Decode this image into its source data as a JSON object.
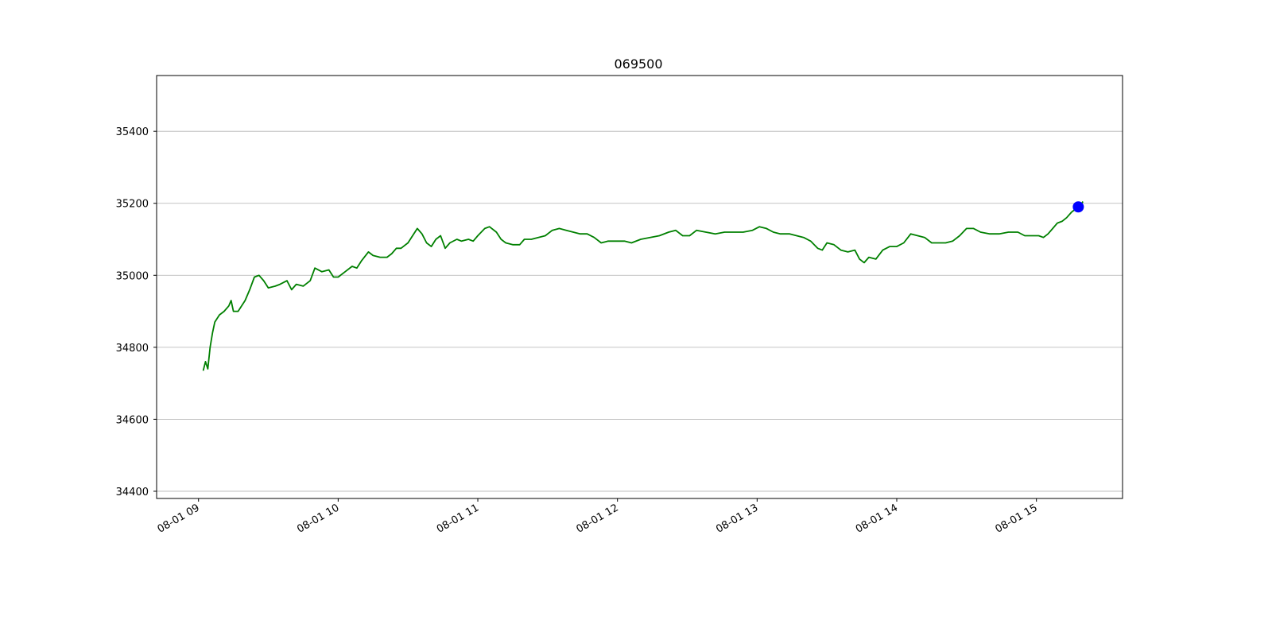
{
  "chart_data": {
    "type": "line",
    "title": "069500",
    "xlabel": "",
    "ylabel": "",
    "x_ticks": [
      "08-01 09",
      "08-01 10",
      "08-01 11",
      "08-01 12",
      "08-01 13",
      "08-01 14",
      "08-01 15"
    ],
    "y_ticks": [
      34400,
      34600,
      34800,
      35000,
      35200,
      35400
    ],
    "xlim": [
      "08-01 08:42",
      "08-01 15:37"
    ],
    "ylim": [
      34380,
      35555
    ],
    "grid": "y-axis only",
    "series": [
      {
        "color": "#008000",
        "points": [
          [
            "09:02",
            34735
          ],
          [
            "09:03",
            34760
          ],
          [
            "09:04",
            34740
          ],
          [
            "09:05",
            34800
          ],
          [
            "09:06",
            34840
          ],
          [
            "09:07",
            34870
          ],
          [
            "09:09",
            34890
          ],
          [
            "09:11",
            34900
          ],
          [
            "09:13",
            34915
          ],
          [
            "09:14",
            34930
          ],
          [
            "09:15",
            34900
          ],
          [
            "09:17",
            34900
          ],
          [
            "09:20",
            34930
          ],
          [
            "09:22",
            34960
          ],
          [
            "09:24",
            34995
          ],
          [
            "09:26",
            35000
          ],
          [
            "09:28",
            34985
          ],
          [
            "09:30",
            34965
          ],
          [
            "09:33",
            34970
          ],
          [
            "09:35",
            34975
          ],
          [
            "09:38",
            34985
          ],
          [
            "09:40",
            34960
          ],
          [
            "09:42",
            34975
          ],
          [
            "09:45",
            34970
          ],
          [
            "09:48",
            34985
          ],
          [
            "09:50",
            35020
          ],
          [
            "09:53",
            35010
          ],
          [
            "09:56",
            35015
          ],
          [
            "09:58",
            34995
          ],
          [
            "10:00",
            34995
          ],
          [
            "10:03",
            35010
          ],
          [
            "10:06",
            35025
          ],
          [
            "10:08",
            35020
          ],
          [
            "10:10",
            35040
          ],
          [
            "10:13",
            35065
          ],
          [
            "10:15",
            35055
          ],
          [
            "10:18",
            35050
          ],
          [
            "10:21",
            35050
          ],
          [
            "10:23",
            35060
          ],
          [
            "10:25",
            35075
          ],
          [
            "10:27",
            35075
          ],
          [
            "10:30",
            35090
          ],
          [
            "10:32",
            35110
          ],
          [
            "10:34",
            35130
          ],
          [
            "10:36",
            35115
          ],
          [
            "10:38",
            35090
          ],
          [
            "10:40",
            35080
          ],
          [
            "10:42",
            35100
          ],
          [
            "10:44",
            35110
          ],
          [
            "10:46",
            35075
          ],
          [
            "10:48",
            35090
          ],
          [
            "10:51",
            35100
          ],
          [
            "10:53",
            35095
          ],
          [
            "10:56",
            35100
          ],
          [
            "10:58",
            35095
          ],
          [
            "11:00",
            35110
          ],
          [
            "11:03",
            35130
          ],
          [
            "11:05",
            35135
          ],
          [
            "11:08",
            35120
          ],
          [
            "11:10",
            35100
          ],
          [
            "11:12",
            35090
          ],
          [
            "11:15",
            35085
          ],
          [
            "11:18",
            35085
          ],
          [
            "11:20",
            35100
          ],
          [
            "11:23",
            35100
          ],
          [
            "11:26",
            35105
          ],
          [
            "11:29",
            35110
          ],
          [
            "11:32",
            35125
          ],
          [
            "11:35",
            35130
          ],
          [
            "11:38",
            35125
          ],
          [
            "11:41",
            35120
          ],
          [
            "11:44",
            35115
          ],
          [
            "11:47",
            35115
          ],
          [
            "11:50",
            35105
          ],
          [
            "11:53",
            35090
          ],
          [
            "11:56",
            35095
          ],
          [
            "12:00",
            35095
          ],
          [
            "12:03",
            35095
          ],
          [
            "12:06",
            35090
          ],
          [
            "12:10",
            35100
          ],
          [
            "12:14",
            35105
          ],
          [
            "12:18",
            35110
          ],
          [
            "12:22",
            35120
          ],
          [
            "12:25",
            35125
          ],
          [
            "12:28",
            35110
          ],
          [
            "12:31",
            35110
          ],
          [
            "12:34",
            35125
          ],
          [
            "12:38",
            35120
          ],
          [
            "12:42",
            35115
          ],
          [
            "12:46",
            35120
          ],
          [
            "12:50",
            35120
          ],
          [
            "12:54",
            35120
          ],
          [
            "12:58",
            35125
          ],
          [
            "13:01",
            35135
          ],
          [
            "13:04",
            35130
          ],
          [
            "13:07",
            35120
          ],
          [
            "13:10",
            35115
          ],
          [
            "13:14",
            35115
          ],
          [
            "13:17",
            35110
          ],
          [
            "13:20",
            35105
          ],
          [
            "13:23",
            35095
          ],
          [
            "13:26",
            35075
          ],
          [
            "13:28",
            35070
          ],
          [
            "13:30",
            35090
          ],
          [
            "13:33",
            35085
          ],
          [
            "13:36",
            35070
          ],
          [
            "13:39",
            35065
          ],
          [
            "13:42",
            35070
          ],
          [
            "13:44",
            35045
          ],
          [
            "13:46",
            35035
          ],
          [
            "13:48",
            35050
          ],
          [
            "13:51",
            35045
          ],
          [
            "13:54",
            35070
          ],
          [
            "13:57",
            35080
          ],
          [
            "14:00",
            35080
          ],
          [
            "14:03",
            35090
          ],
          [
            "14:06",
            35115
          ],
          [
            "14:09",
            35110
          ],
          [
            "14:12",
            35105
          ],
          [
            "14:15",
            35090
          ],
          [
            "14:18",
            35090
          ],
          [
            "14:21",
            35090
          ],
          [
            "14:24",
            35095
          ],
          [
            "14:27",
            35110
          ],
          [
            "14:30",
            35130
          ],
          [
            "14:33",
            35130
          ],
          [
            "14:36",
            35120
          ],
          [
            "14:40",
            35115
          ],
          [
            "14:44",
            35115
          ],
          [
            "14:48",
            35120
          ],
          [
            "14:52",
            35120
          ],
          [
            "14:55",
            35110
          ],
          [
            "14:58",
            35110
          ],
          [
            "15:01",
            35110
          ],
          [
            "15:03",
            35105
          ],
          [
            "15:05",
            35115
          ],
          [
            "15:07",
            35130
          ],
          [
            "15:09",
            35145
          ],
          [
            "15:11",
            35150
          ],
          [
            "15:13",
            35160
          ],
          [
            "15:15",
            35175
          ],
          [
            "15:17",
            35185
          ],
          [
            "15:19",
            35195
          ],
          [
            "15:20",
            35205
          ]
        ]
      }
    ],
    "marker": {
      "x": "15:18",
      "y": 35190,
      "color": "#0000ff"
    }
  }
}
